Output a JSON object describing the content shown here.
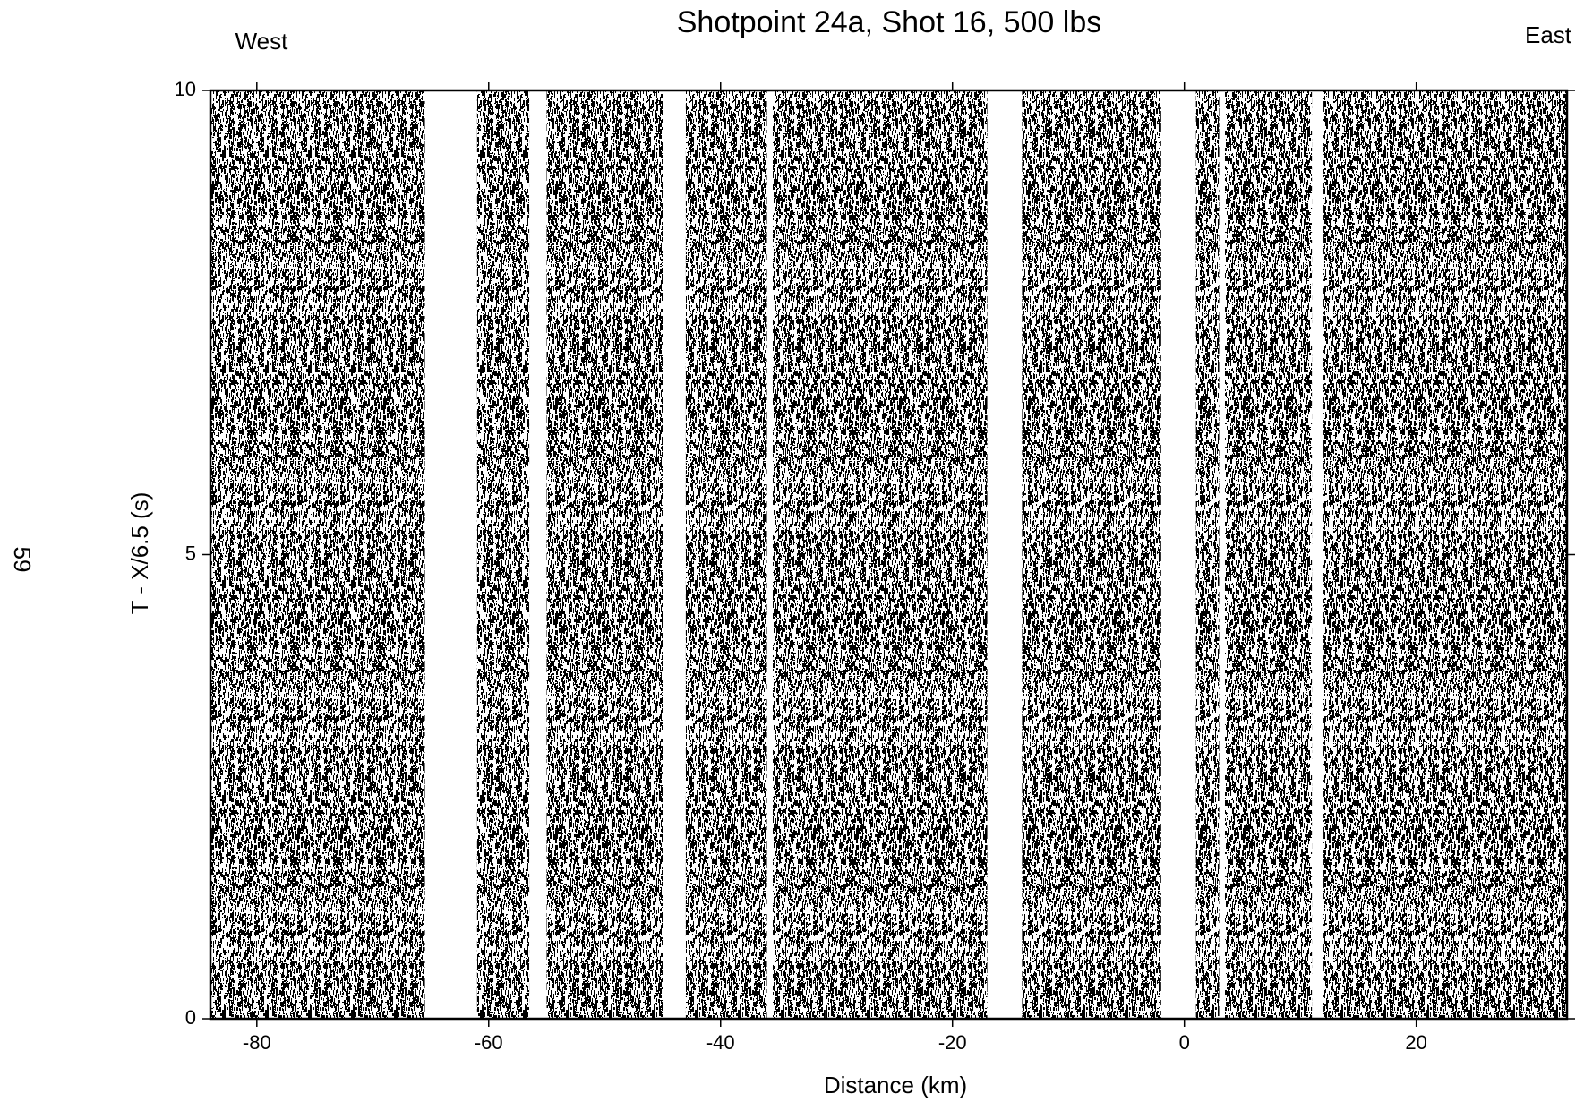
{
  "chart_data": {
    "type": "record-section",
    "title": "Shotpoint 24a, Shot 16, 500 lbs",
    "left_label": "West",
    "right_label": "East",
    "page_number": "59",
    "x_label": "Distance (km)",
    "y_label": "T - X/6.5 (s)",
    "xlim": [
      -84,
      33
    ],
    "ylim": [
      0,
      10
    ],
    "xticks": [
      -80,
      -60,
      -40,
      -20,
      0,
      20
    ],
    "yticks": [
      0,
      5,
      10
    ],
    "color": "#000000",
    "trace_ranges": [
      [
        -84,
        -65.5
      ],
      [
        -61,
        -56.5
      ],
      [
        -55,
        -45
      ],
      [
        -43,
        -36
      ],
      [
        -35.5,
        -31
      ],
      [
        -31,
        -17
      ],
      [
        -14,
        -2
      ],
      [
        1,
        3
      ],
      [
        3.5,
        11
      ],
      [
        12,
        33
      ]
    ]
  }
}
